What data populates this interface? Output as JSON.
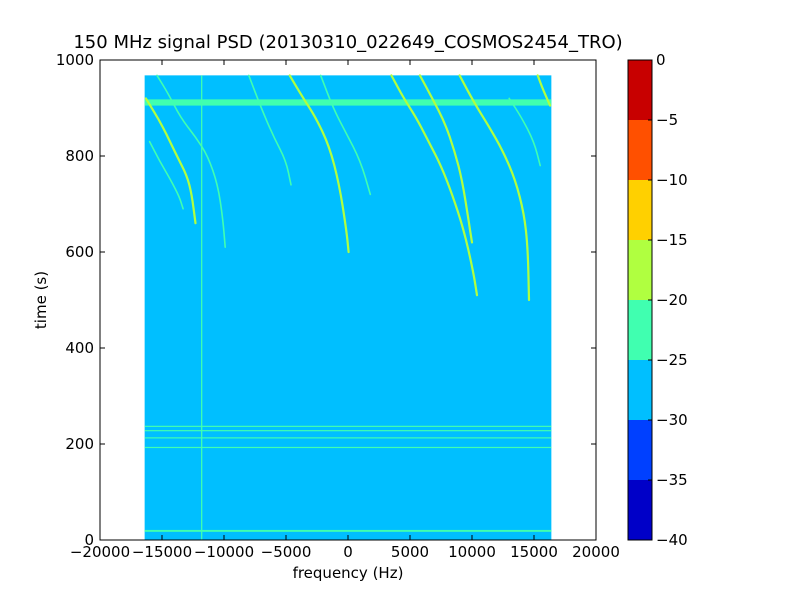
{
  "chart_data": {
    "type": "heatmap",
    "title": "150 MHz signal PSD (20130310_022649_COSMOS2454_TRO)",
    "xlabel": "frequency (Hz)",
    "ylabel": "time (s)",
    "xlim": [
      -20000,
      20000
    ],
    "ylim": [
      0,
      1000
    ],
    "x_ticks": [
      -20000,
      -15000,
      -10000,
      -5000,
      0,
      5000,
      10000,
      15000,
      20000
    ],
    "x_tick_labels": [
      "−20000",
      "−15000",
      "−10000",
      "−5000",
      "0",
      "5000",
      "10000",
      "15000",
      "20000"
    ],
    "y_ticks": [
      0,
      200,
      400,
      600,
      800,
      1000
    ],
    "y_tick_labels": [
      "0",
      "200",
      "400",
      "600",
      "800",
      "1000"
    ],
    "data_extent": {
      "x": [
        -16400,
        16400
      ],
      "y": [
        0,
        968
      ]
    },
    "background_level": -27.5,
    "colorbar": {
      "range": [
        -40,
        0
      ],
      "levels": [
        -40,
        -35,
        -30,
        -25,
        -20,
        -15,
        -10,
        -5,
        0
      ],
      "tick_labels": [
        "−40",
        "−35",
        "−30",
        "−25",
        "−20",
        "−15",
        "−10",
        "−5",
        "0"
      ],
      "colors": [
        "#0000c8",
        "#0040ff",
        "#00bfff",
        "#40ffb0",
        "#b0ff40",
        "#ffd000",
        "#ff5000",
        "#c80000"
      ]
    },
    "horizontal_bands": [
      {
        "y_start": 905,
        "y_end": 918,
        "level": -22.5
      },
      {
        "y_start": 17,
        "y_end": 21,
        "level": -22.5
      },
      {
        "y_start": 236,
        "y_end": 238,
        "level": -22.5
      },
      {
        "y_start": 227,
        "y_end": 229,
        "level": -22.5
      },
      {
        "y_start": 212,
        "y_end": 214,
        "level": -22.5
      },
      {
        "y_start": 192,
        "y_end": 194,
        "level": -22.5
      }
    ],
    "vertical_lines": [
      {
        "x": -11800,
        "y_start": 0,
        "y_end": 968,
        "level": -22.5
      }
    ],
    "drift_traces": [
      {
        "level": -17.5,
        "points": [
          [
            -16300,
            920
          ],
          [
            -15000,
            865
          ],
          [
            -13800,
            800
          ],
          [
            -13000,
            760
          ],
          [
            -12600,
            720
          ],
          [
            -12300,
            660
          ]
        ]
      },
      {
        "level": -22.5,
        "points": [
          [
            -15400,
            968
          ],
          [
            -14500,
            930
          ],
          [
            -13500,
            880
          ],
          [
            -12300,
            840
          ],
          [
            -11300,
            800
          ],
          [
            -10500,
            740
          ],
          [
            -10100,
            670
          ],
          [
            -9900,
            610
          ]
        ]
      },
      {
        "level": -22.5,
        "points": [
          [
            -16000,
            830
          ],
          [
            -15200,
            790
          ],
          [
            -14300,
            750
          ],
          [
            -13600,
            715
          ],
          [
            -13300,
            690
          ]
        ]
      },
      {
        "level": -22.5,
        "points": [
          [
            -8000,
            968
          ],
          [
            -7000,
            900
          ],
          [
            -6000,
            840
          ],
          [
            -5000,
            790
          ],
          [
            -4600,
            740
          ]
        ]
      },
      {
        "level": -17.5,
        "points": [
          [
            -4700,
            968
          ],
          [
            -3600,
            920
          ],
          [
            -2600,
            880
          ],
          [
            -1500,
            820
          ],
          [
            -700,
            740
          ],
          [
            -150,
            650
          ],
          [
            50,
            600
          ]
        ]
      },
      {
        "level": -22.5,
        "points": [
          [
            -2200,
            968
          ],
          [
            -1200,
            900
          ],
          [
            -200,
            850
          ],
          [
            1000,
            790
          ],
          [
            1800,
            720
          ]
        ]
      },
      {
        "level": -17.5,
        "points": [
          [
            3500,
            968
          ],
          [
            4500,
            920
          ],
          [
            5500,
            880
          ],
          [
            6500,
            830
          ],
          [
            7500,
            780
          ],
          [
            8400,
            720
          ],
          [
            9300,
            650
          ],
          [
            10100,
            560
          ],
          [
            10400,
            510
          ]
        ]
      },
      {
        "level": -17.5,
        "points": [
          [
            5800,
            968
          ],
          [
            6800,
            920
          ],
          [
            7800,
            870
          ],
          [
            8600,
            810
          ],
          [
            9200,
            750
          ],
          [
            9700,
            670
          ],
          [
            10000,
            620
          ]
        ]
      },
      {
        "level": -17.5,
        "points": [
          [
            9000,
            968
          ],
          [
            10200,
            910
          ],
          [
            11400,
            860
          ],
          [
            12500,
            810
          ],
          [
            13500,
            750
          ],
          [
            14200,
            680
          ],
          [
            14500,
            610
          ],
          [
            14600,
            500
          ]
        ]
      },
      {
        "level": -17.5,
        "points": [
          [
            15300,
            968
          ],
          [
            15700,
            940
          ],
          [
            16300,
            905
          ]
        ]
      },
      {
        "level": -22.5,
        "points": [
          [
            13000,
            920
          ],
          [
            14000,
            880
          ],
          [
            15000,
            830
          ],
          [
            15500,
            780
          ]
        ]
      }
    ]
  }
}
